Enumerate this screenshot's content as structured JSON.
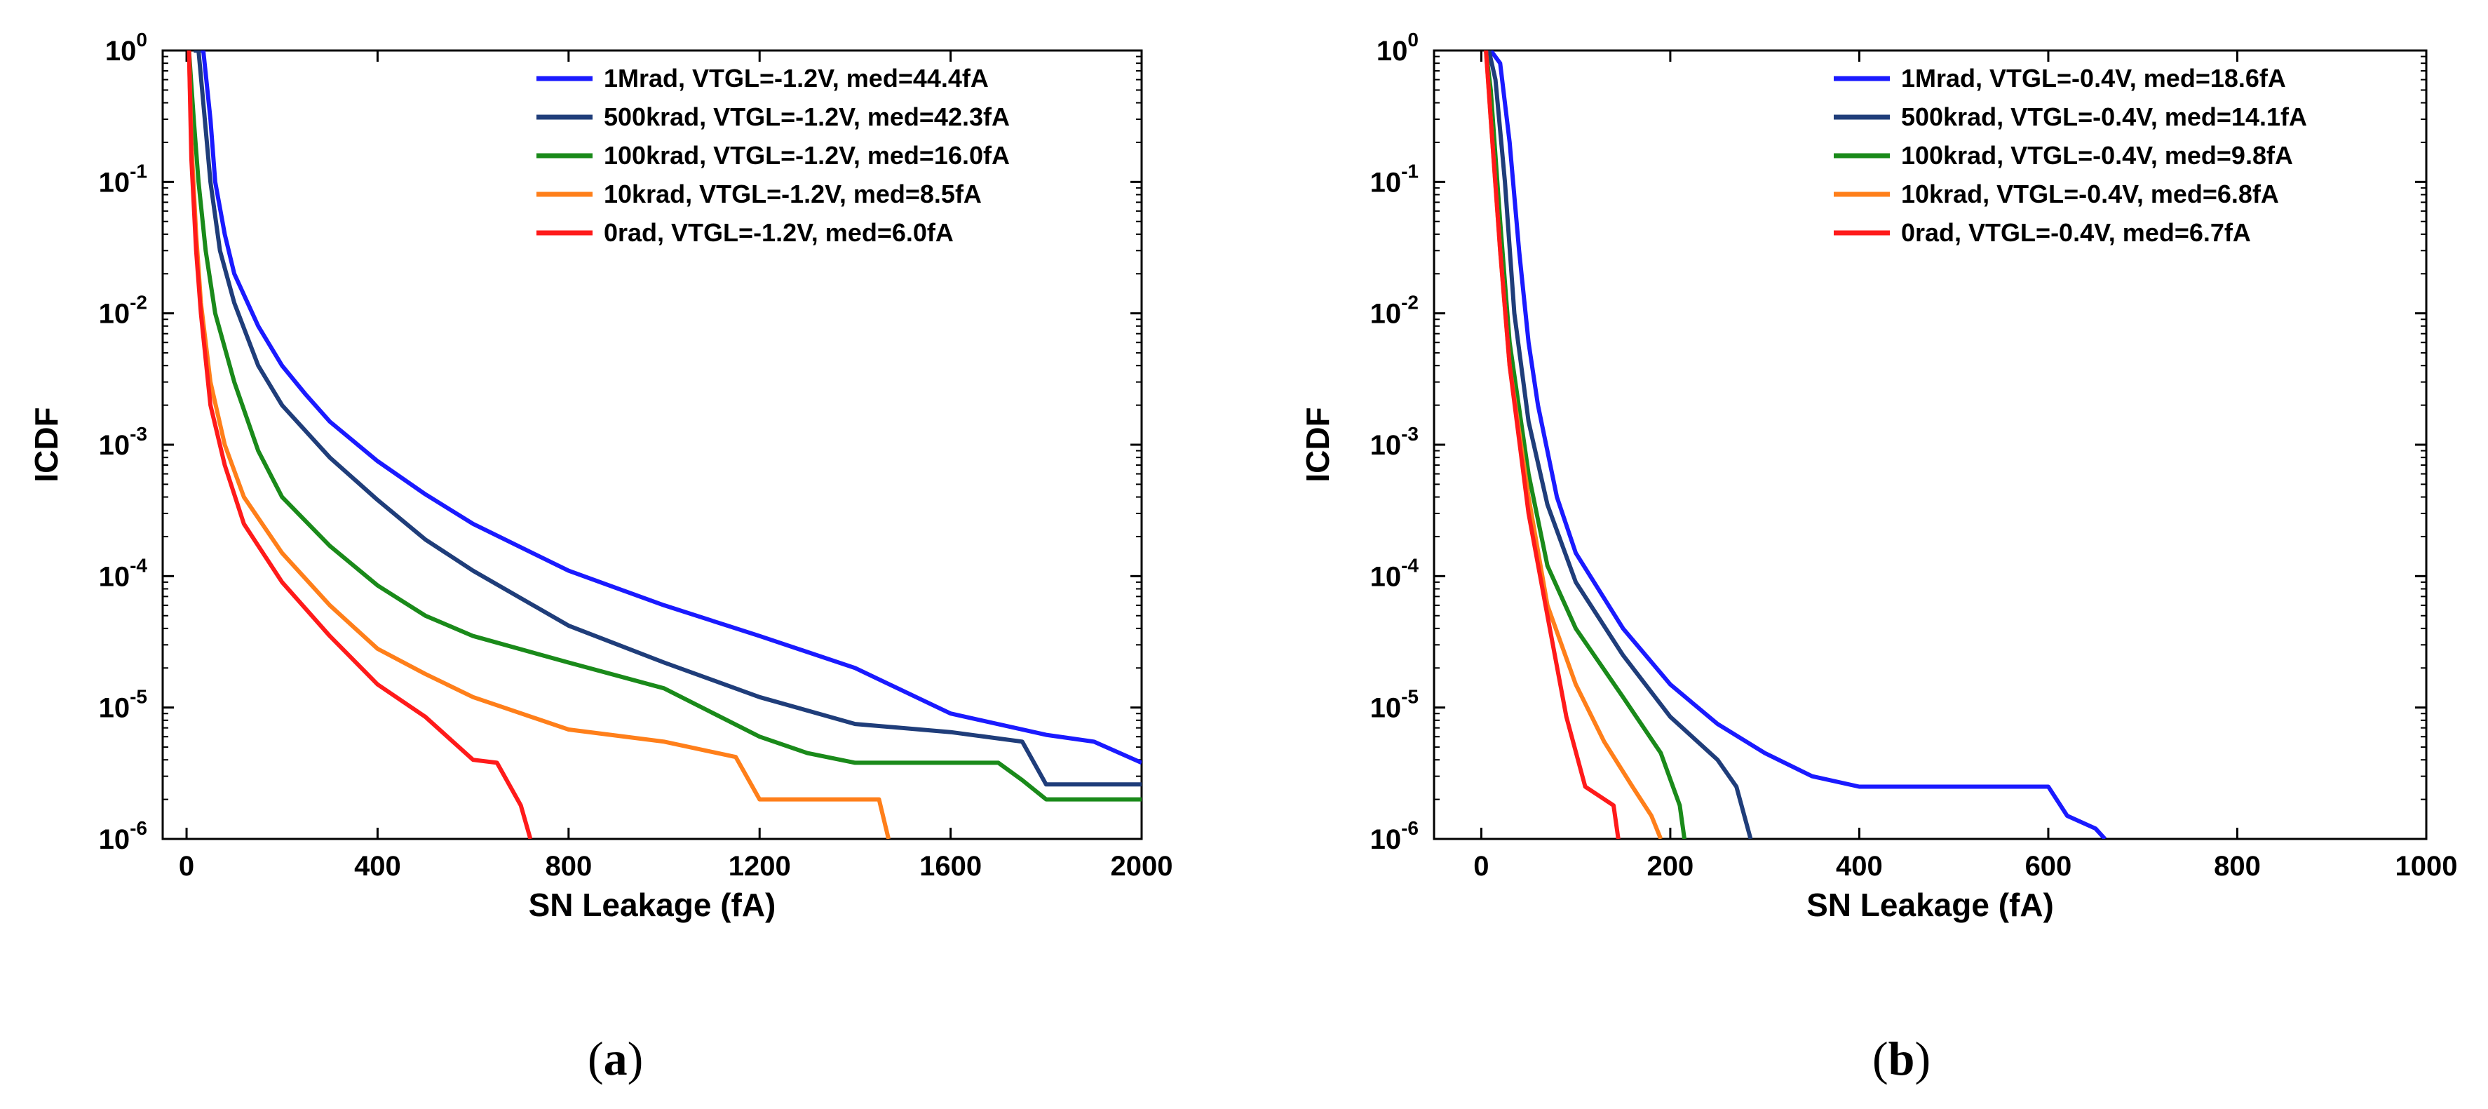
{
  "chart_data": [
    {
      "id": "a",
      "type": "line",
      "title": "",
      "panel_label": "a",
      "xlabel": "SN Leakage (fA)",
      "ylabel": "ICDF",
      "xlim": [
        -50,
        2000
      ],
      "ylim": [
        1e-06,
        1
      ],
      "yscale": "log",
      "grid": false,
      "xticks": [
        0,
        400,
        800,
        1200,
        1600,
        2000
      ],
      "xtick_labels": [
        "0",
        "400",
        "800",
        "1200",
        "1600",
        "2000"
      ],
      "yticks": [
        1,
        0.1,
        0.01,
        0.001,
        0.0001,
        1e-05,
        1e-06
      ],
      "ytick_labels": [
        {
          "base": "10",
          "exp": "0"
        },
        {
          "base": "10",
          "exp": "-1"
        },
        {
          "base": "10",
          "exp": "-2"
        },
        {
          "base": "10",
          "exp": "-3"
        },
        {
          "base": "10",
          "exp": "-4"
        },
        {
          "base": "10",
          "exp": "-5"
        },
        {
          "base": "10",
          "exp": "-6"
        }
      ],
      "legend_position": "top-right",
      "series": [
        {
          "name": "1Mrad, VTGL=-1.2V, med=44.4fA",
          "color": "#1a1aff",
          "x": [
            20,
            35,
            50,
            60,
            80,
            100,
            150,
            200,
            250,
            300,
            400,
            500,
            600,
            800,
            1000,
            1200,
            1400,
            1600,
            1800,
            1900,
            2000
          ],
          "y": [
            1,
            1,
            0.3,
            0.1,
            0.04,
            0.02,
            0.008,
            0.004,
            0.0024,
            0.0015,
            0.00075,
            0.00042,
            0.00025,
            0.00011,
            6e-05,
            3.5e-05,
            2e-05,
            9e-06,
            6.2e-06,
            5.5e-06,
            3.8e-06
          ]
        },
        {
          "name": "500krad, VTGL=-1.2V, med=42.3fA",
          "color": "#1f3d7a",
          "x": [
            15,
            25,
            35,
            50,
            70,
            100,
            150,
            200,
            300,
            400,
            500,
            600,
            800,
            1000,
            1200,
            1400,
            1600,
            1750,
            1800,
            2000
          ],
          "y": [
            1,
            1,
            0.4,
            0.1,
            0.03,
            0.012,
            0.004,
            0.002,
            0.0008,
            0.00038,
            0.00019,
            0.00011,
            4.2e-05,
            2.2e-05,
            1.2e-05,
            7.5e-06,
            6.5e-06,
            5.5e-06,
            2.6e-06,
            2.6e-06
          ]
        },
        {
          "name": "100krad, VTGL=-1.2V, med=16.0fA",
          "color": "#1a8a1a",
          "x": [
            5,
            15,
            25,
            40,
            60,
            100,
            150,
            200,
            300,
            400,
            500,
            600,
            800,
            1000,
            1200,
            1300,
            1400,
            1700,
            1750,
            1800,
            2000
          ],
          "y": [
            1,
            0.3,
            0.1,
            0.03,
            0.01,
            0.003,
            0.0009,
            0.0004,
            0.00017,
            8.5e-05,
            5e-05,
            3.5e-05,
            2.2e-05,
            1.4e-05,
            6e-06,
            4.5e-06,
            3.8e-06,
            3.8e-06,
            2.8e-06,
            2e-06,
            2e-06
          ]
        },
        {
          "name": "10krad, VTGL=-1.2V, med=8.5fA",
          "color": "#ff7f1a",
          "x": [
            5,
            10,
            20,
            30,
            50,
            80,
            120,
            200,
            300,
            400,
            500,
            600,
            800,
            1000,
            1150,
            1200,
            1300,
            1450,
            1470
          ],
          "y": [
            1,
            0.2,
            0.04,
            0.012,
            0.003,
            0.001,
            0.0004,
            0.00015,
            6e-05,
            2.8e-05,
            1.8e-05,
            1.2e-05,
            6.8e-06,
            5.5e-06,
            4.2e-06,
            2e-06,
            2e-06,
            2e-06,
            1e-06
          ]
        },
        {
          "name": "0rad, VTGL=-1.2V, med=6.0fA",
          "color": "#ff1a1a",
          "x": [
            5,
            10,
            20,
            30,
            50,
            80,
            120,
            200,
            300,
            400,
            500,
            600,
            650,
            700,
            720
          ],
          "y": [
            1,
            0.15,
            0.03,
            0.01,
            0.002,
            0.0007,
            0.00025,
            9e-05,
            3.5e-05,
            1.5e-05,
            8.5e-06,
            4e-06,
            3.8e-06,
            1.8e-06,
            1e-06
          ]
        }
      ]
    },
    {
      "id": "b",
      "type": "line",
      "title": "",
      "panel_label": "b",
      "xlabel": "SN Leakage (fA)",
      "ylabel": "ICDF",
      "xlim": [
        -50,
        1000
      ],
      "ylim": [
        1e-06,
        1
      ],
      "yscale": "log",
      "grid": false,
      "xticks": [
        0,
        200,
        400,
        600,
        800,
        1000
      ],
      "xtick_labels": [
        "0",
        "200",
        "400",
        "600",
        "800",
        "1000"
      ],
      "yticks": [
        1,
        0.1,
        0.01,
        0.001,
        0.0001,
        1e-05,
        1e-06
      ],
      "ytick_labels": [
        {
          "base": "10",
          "exp": "0"
        },
        {
          "base": "10",
          "exp": "-1"
        },
        {
          "base": "10",
          "exp": "-2"
        },
        {
          "base": "10",
          "exp": "-3"
        },
        {
          "base": "10",
          "exp": "-4"
        },
        {
          "base": "10",
          "exp": "-5"
        },
        {
          "base": "10",
          "exp": "-6"
        }
      ],
      "legend_position": "top-right",
      "series": [
        {
          "name": "1Mrad, VTGL=-0.4V, med=18.6fA",
          "color": "#1a1aff",
          "x": [
            10,
            20,
            30,
            40,
            50,
            60,
            80,
            100,
            150,
            200,
            250,
            300,
            350,
            400,
            450,
            600,
            620,
            650,
            660
          ],
          "y": [
            1,
            0.8,
            0.2,
            0.03,
            0.006,
            0.002,
            0.0004,
            0.00015,
            4e-05,
            1.5e-05,
            7.5e-06,
            4.5e-06,
            3e-06,
            2.5e-06,
            2.5e-06,
            2.5e-06,
            1.5e-06,
            1.2e-06,
            1e-06
          ]
        },
        {
          "name": "500krad, VTGL=-0.4V, med=14.1fA",
          "color": "#1f3d7a",
          "x": [
            8,
            15,
            25,
            35,
            50,
            70,
            100,
            150,
            200,
            250,
            270,
            285
          ],
          "y": [
            1,
            0.6,
            0.1,
            0.01,
            0.0015,
            0.00035,
            9e-05,
            2.5e-05,
            8.5e-06,
            4e-06,
            2.5e-06,
            1e-06
          ]
        },
        {
          "name": "100krad, VTGL=-0.4V, med=9.8fA",
          "color": "#1a8a1a",
          "x": [
            5,
            10,
            20,
            30,
            50,
            70,
            100,
            150,
            190,
            210,
            215
          ],
          "y": [
            1,
            0.5,
            0.05,
            0.006,
            0.0006,
            0.00012,
            4e-05,
            1.2e-05,
            4.5e-06,
            1.8e-06,
            1e-06
          ]
        },
        {
          "name": "10krad, VTGL=-0.4V, med=6.8fA",
          "color": "#ff7f1a",
          "x": [
            5,
            10,
            20,
            30,
            50,
            70,
            100,
            130,
            160,
            180,
            190
          ],
          "y": [
            1,
            0.3,
            0.03,
            0.004,
            0.0004,
            6e-05,
            1.5e-05,
            5.5e-06,
            2.5e-06,
            1.5e-06,
            1e-06
          ]
        },
        {
          "name": "0rad, VTGL=-0.4V, med=6.7fA",
          "color": "#ff1a1a",
          "x": [
            5,
            10,
            20,
            30,
            50,
            70,
            90,
            110,
            140,
            145
          ],
          "y": [
            1,
            0.3,
            0.03,
            0.004,
            0.0003,
            5e-05,
            8.5e-06,
            2.5e-06,
            1.8e-06,
            1e-06
          ]
        }
      ]
    }
  ]
}
